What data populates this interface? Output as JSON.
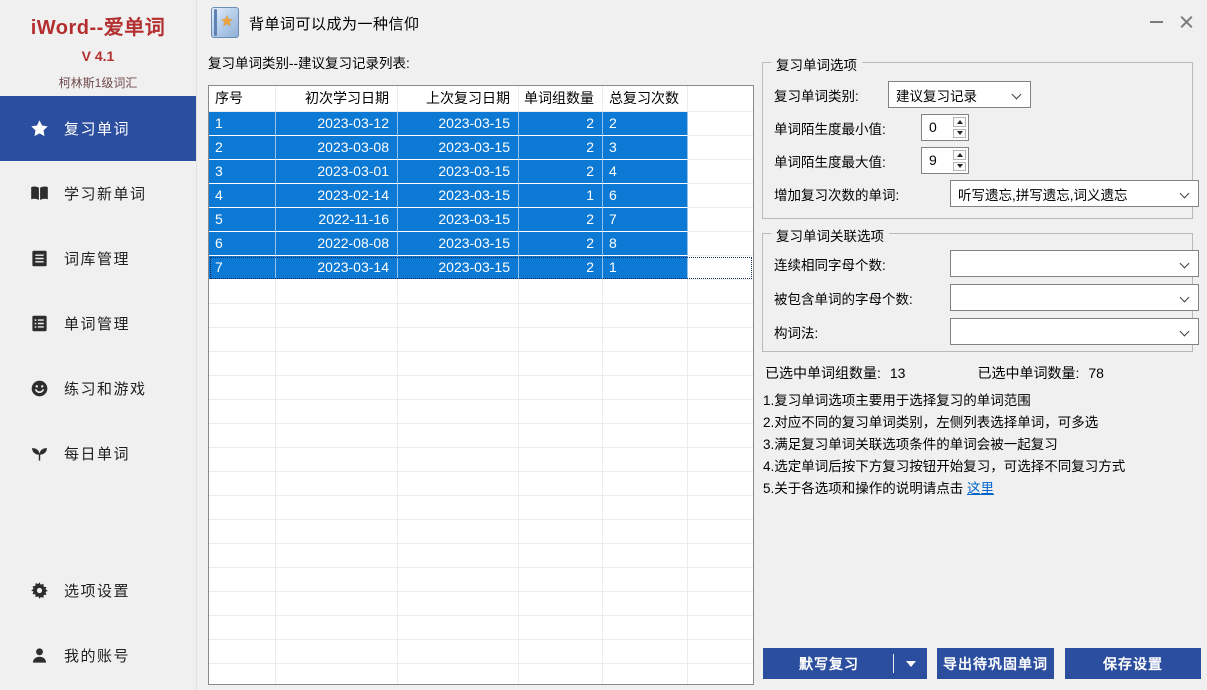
{
  "colors": {
    "accent_blue": "#2c4e9e",
    "selection_blue": "#0c79d4",
    "brand_red": "#b32f2f",
    "link_blue": "#0066cc"
  },
  "window": {
    "slogan": "背单词可以成为一种信仰",
    "app_icon": "book-star-icon",
    "app_icon_star": "★"
  },
  "sidebar": {
    "app_title": "iWord--爱单词",
    "version": "V 4.1",
    "subtitle": "柯林斯1级词汇",
    "items": [
      {
        "key": "review-words",
        "label": "复习单词",
        "icon": "star-icon",
        "active": true
      },
      {
        "key": "learn-new-words",
        "label": "学习新单词",
        "icon": "open-book-icon",
        "active": false
      },
      {
        "key": "wordbank-management",
        "label": "词库管理",
        "icon": "library-icon",
        "active": false
      },
      {
        "key": "word-management",
        "label": "单词管理",
        "icon": "word-list-icon",
        "active": false
      },
      {
        "key": "practice-and-games",
        "label": "练习和游戏",
        "icon": "smiley-icon",
        "active": false
      },
      {
        "key": "daily-words",
        "label": "每日单词",
        "icon": "sprout-icon",
        "active": false
      },
      {
        "key": "settings",
        "label": "选项设置",
        "icon": "gear-icon",
        "active": false
      },
      {
        "key": "my-account",
        "label": "我的账号",
        "icon": "user-icon",
        "active": false
      }
    ]
  },
  "main": {
    "list_label": "复习单词类别--建议复习记录列表:",
    "table": {
      "headers": [
        "序号",
        "初次学习日期",
        "上次复习日期",
        "单词组数量",
        "总复习次数"
      ],
      "rows": [
        [
          "1",
          "2023-03-12",
          "2023-03-15",
          "2",
          "2"
        ],
        [
          "2",
          "2023-03-08",
          "2023-03-15",
          "2",
          "3"
        ],
        [
          "3",
          "2023-03-01",
          "2023-03-15",
          "2",
          "4"
        ],
        [
          "4",
          "2023-02-14",
          "2023-03-15",
          "1",
          "6"
        ],
        [
          "5",
          "2022-11-16",
          "2023-03-15",
          "2",
          "7"
        ],
        [
          "6",
          "2022-08-08",
          "2023-03-15",
          "2",
          "8"
        ],
        [
          "7",
          "2023-03-14",
          "2023-03-15",
          "2",
          "1"
        ]
      ],
      "focused_row_index": 6,
      "empty_filler_rows": 17
    }
  },
  "options": {
    "group1": {
      "title": "复习单词选项",
      "category_label": "复习单词类别:",
      "category_value": "建议复习记录",
      "min_label": "单词陌生度最小值:",
      "min_value": "0",
      "max_label": "单词陌生度最大值:",
      "max_value": "9",
      "extra_label": "增加复习次数的单词:",
      "extra_value": "听写遗忘,拼写遗忘,词义遗忘"
    },
    "group2": {
      "title": "复习单词关联选项",
      "same_letters_label": "连续相同字母个数:",
      "same_letters_value": "",
      "contained_label": "被包含单词的字母个数:",
      "contained_value": "",
      "word_formation_label": "构词法:",
      "word_formation_value": ""
    },
    "stats": {
      "groups_label": "已选中单词组数量:",
      "groups_value": "13",
      "words_label": "已选中单词数量:",
      "words_value": "78"
    },
    "notes": [
      "1.复习单词选项主要用于选择复习的单词范围",
      "2.对应不同的复习单词类别，左侧列表选择单词，可多选",
      "3.满足复习单词关联选项条件的单词会被一起复习",
      "4.选定单词后按下方复习按钮开始复习，可选择不同复习方式"
    ],
    "note5_prefix": "5.关于各选项和操作的说明请点击 ",
    "note5_link": "这里",
    "buttons": {
      "review": "默写复习",
      "export": "导出待巩固单词",
      "save": "保存设置"
    }
  }
}
